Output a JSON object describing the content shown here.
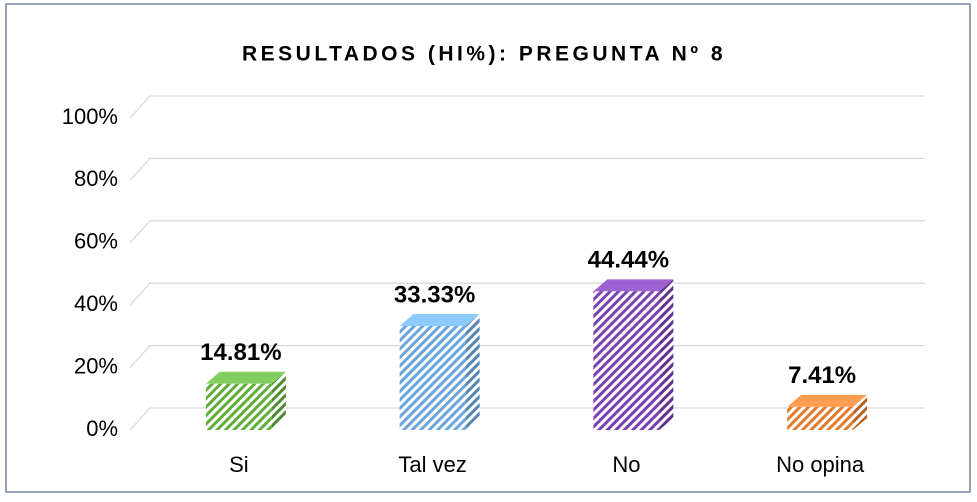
{
  "chart_data": {
    "type": "bar3d",
    "title": "RESULTADOS (HI%): PREGUNTA Nº 8",
    "categories": [
      "Si",
      "Tal vez",
      "No",
      "No opina"
    ],
    "values": [
      14.81,
      33.33,
      44.44,
      7.41
    ],
    "value_labels": [
      "14.81%",
      "33.33%",
      "44.44%",
      "7.41%"
    ],
    "colors": [
      "#5fae3b",
      "#6aa6de",
      "#7a3fb0",
      "#e27a2c"
    ],
    "ylim": [
      0,
      100
    ],
    "yticks": [
      {
        "value": 0,
        "label": "0%"
      },
      {
        "value": 20,
        "label": "20%"
      },
      {
        "value": 40,
        "label": "40%"
      },
      {
        "value": 60,
        "label": "60%"
      },
      {
        "value": 80,
        "label": "80%"
      },
      {
        "value": 100,
        "label": "100%"
      }
    ],
    "grid": true
  }
}
